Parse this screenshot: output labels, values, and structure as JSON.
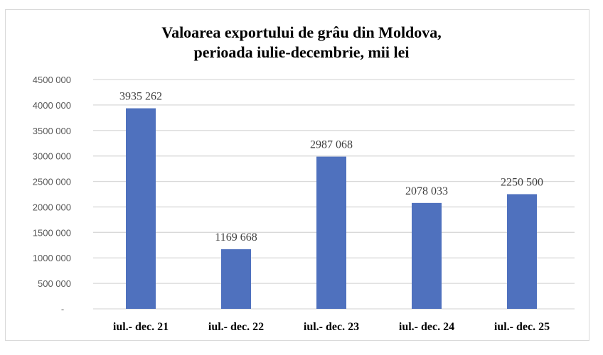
{
  "chart_data": {
    "type": "bar",
    "title": [
      "Valoarea exportului de grâu din Moldova,",
      "perioada iulie-decembrie, mii lei"
    ],
    "categories": [
      "iul.- dec. 21",
      "iul.- dec. 22",
      "iul.- dec. 23",
      "iul.- dec. 24",
      "iul.- dec. 25"
    ],
    "values": [
      3935262,
      1169668,
      2987068,
      2078033,
      2250500
    ],
    "data_labels": [
      "3935 262",
      "1169 668",
      "2987 068",
      "2078 033",
      "2250 500"
    ],
    "ylim": [
      0,
      4500000
    ],
    "yticks": [
      0,
      500000,
      1000000,
      1500000,
      2000000,
      2500000,
      3000000,
      3500000,
      4000000,
      4500000
    ],
    "ytick_labels": [
      "-",
      "500 000",
      "1000 000",
      "1500 000",
      "2000 000",
      "2500 000",
      "3000 000",
      "3500 000",
      "4000 000",
      "4500 000"
    ],
    "xlabel": "",
    "ylabel": "",
    "grid": true,
    "legend": "none",
    "colors": {
      "bar": "#4f71be",
      "grid": "#d9d9d9"
    }
  }
}
